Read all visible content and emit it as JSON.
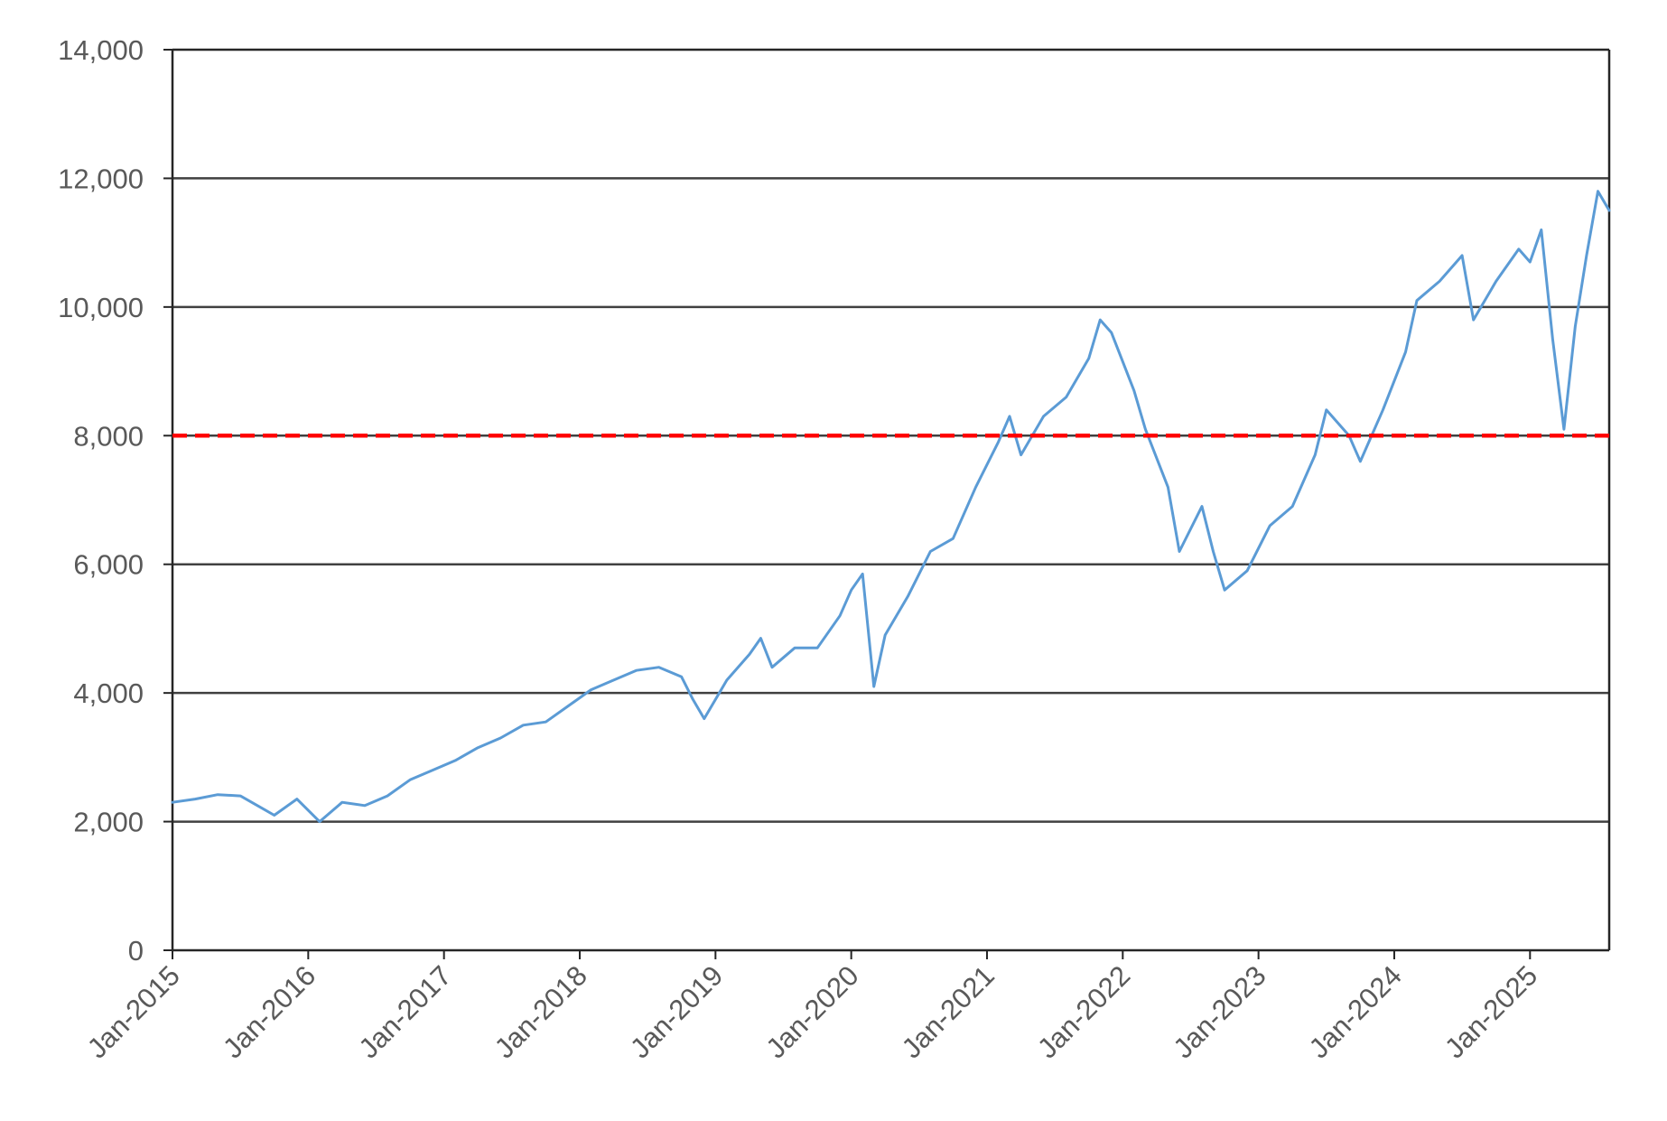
{
  "chart_data": {
    "type": "line",
    "title": "",
    "xlabel": "",
    "ylabel": "",
    "ylim": [
      0,
      14000
    ],
    "yticks": [
      0,
      2000,
      4000,
      6000,
      8000,
      10000,
      12000,
      14000
    ],
    "ytick_labels": [
      "0",
      "2,000",
      "4,000",
      "6,000",
      "8,000",
      "10,000",
      "12,000",
      "14,000"
    ],
    "xlim": [
      "2015-01",
      "2025-08"
    ],
    "xticks": [
      "2015-01",
      "2016-01",
      "2017-01",
      "2018-01",
      "2019-01",
      "2020-01",
      "2021-01",
      "2022-01",
      "2023-01",
      "2024-01",
      "2025-01"
    ],
    "xtick_labels": [
      "Jan-2015",
      "Jan-2016",
      "Jan-2017",
      "Jan-2018",
      "Jan-2019",
      "Jan-2020",
      "Jan-2021",
      "Jan-2022",
      "Jan-2023",
      "Jan-2024",
      "Jan-2025"
    ],
    "grid": "horizontal",
    "legend": "none",
    "series": [
      {
        "color": "#5b9bd5",
        "style": "solid",
        "points": [
          [
            "2015-01",
            2300
          ],
          [
            "2015-03",
            2350
          ],
          [
            "2015-05",
            2420
          ],
          [
            "2015-07",
            2400
          ],
          [
            "2015-09",
            2200
          ],
          [
            "2015-10",
            2100
          ],
          [
            "2015-12",
            2350
          ],
          [
            "2016-02",
            2000
          ],
          [
            "2016-04",
            2300
          ],
          [
            "2016-06",
            2250
          ],
          [
            "2016-08",
            2400
          ],
          [
            "2016-10",
            2650
          ],
          [
            "2016-12",
            2800
          ],
          [
            "2017-02",
            2950
          ],
          [
            "2017-04",
            3150
          ],
          [
            "2017-06",
            3300
          ],
          [
            "2017-08",
            3500
          ],
          [
            "2017-10",
            3550
          ],
          [
            "2017-12",
            3800
          ],
          [
            "2018-02",
            4050
          ],
          [
            "2018-04",
            4200
          ],
          [
            "2018-06",
            4350
          ],
          [
            "2018-08",
            4400
          ],
          [
            "2018-10",
            4250
          ],
          [
            "2018-11",
            3900
          ],
          [
            "2018-12",
            3600
          ],
          [
            "2019-02",
            4200
          ],
          [
            "2019-04",
            4600
          ],
          [
            "2019-05",
            4850
          ],
          [
            "2019-06",
            4400
          ],
          [
            "2019-08",
            4700
          ],
          [
            "2019-10",
            4700
          ],
          [
            "2019-12",
            5200
          ],
          [
            "2020-01",
            5600
          ],
          [
            "2020-02",
            5850
          ],
          [
            "2020-03",
            4100
          ],
          [
            "2020-04",
            4900
          ],
          [
            "2020-06",
            5500
          ],
          [
            "2020-08",
            6200
          ],
          [
            "2020-10",
            6400
          ],
          [
            "2020-12",
            7200
          ],
          [
            "2021-02",
            7900
          ],
          [
            "2021-03",
            8300
          ],
          [
            "2021-04",
            7700
          ],
          [
            "2021-06",
            8300
          ],
          [
            "2021-08",
            8600
          ],
          [
            "2021-10",
            9200
          ],
          [
            "2021-11",
            9800
          ],
          [
            "2021-12",
            9600
          ],
          [
            "2022-02",
            8700
          ],
          [
            "2022-03",
            8100
          ],
          [
            "2022-05",
            7200
          ],
          [
            "2022-06",
            6200
          ],
          [
            "2022-08",
            6900
          ],
          [
            "2022-09",
            6200
          ],
          [
            "2022-10",
            5600
          ],
          [
            "2022-12",
            5900
          ],
          [
            "2023-02",
            6600
          ],
          [
            "2023-04",
            6900
          ],
          [
            "2023-06",
            7700
          ],
          [
            "2023-07",
            8400
          ],
          [
            "2023-09",
            8000
          ],
          [
            "2023-10",
            7600
          ],
          [
            "2023-12",
            8400
          ],
          [
            "2024-02",
            9300
          ],
          [
            "2024-03",
            10100
          ],
          [
            "2024-05",
            10400
          ],
          [
            "2024-07",
            10800
          ],
          [
            "2024-08",
            9800
          ],
          [
            "2024-10",
            10400
          ],
          [
            "2024-12",
            10900
          ],
          [
            "2025-01",
            10700
          ],
          [
            "2025-02",
            11200
          ],
          [
            "2025-03",
            9500
          ],
          [
            "2025-04",
            8100
          ],
          [
            "2025-05",
            9700
          ],
          [
            "2025-06",
            10800
          ],
          [
            "2025-07",
            11800
          ],
          [
            "2025-08",
            11500
          ]
        ]
      },
      {
        "color": "#ff0000",
        "style": "dashed",
        "points": [
          [
            "2015-01",
            8000
          ],
          [
            "2025-08",
            8000
          ]
        ]
      }
    ]
  }
}
